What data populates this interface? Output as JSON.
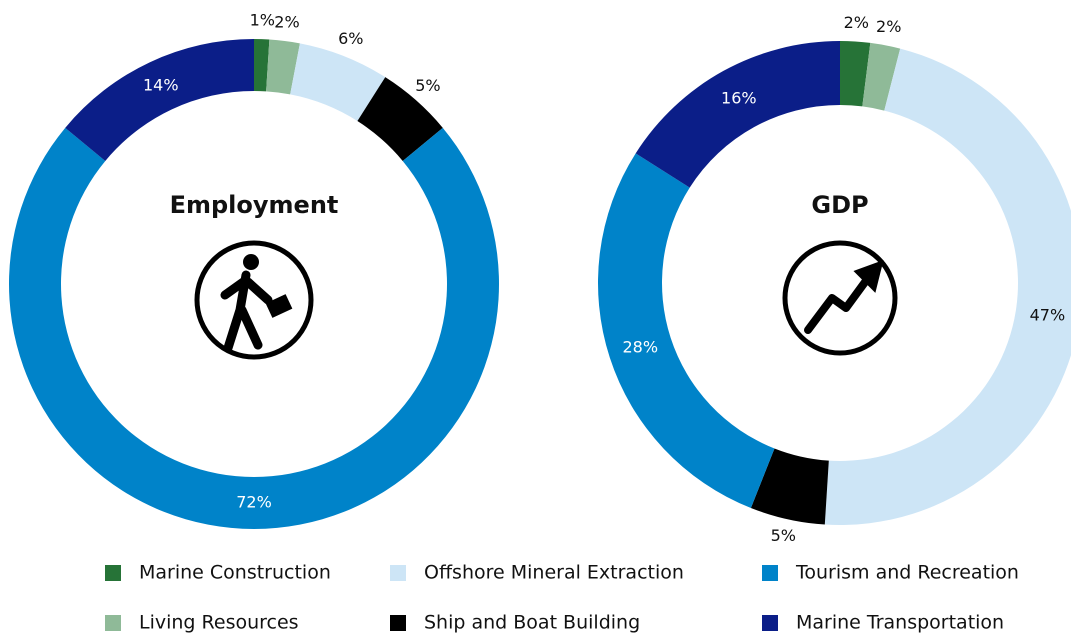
{
  "chart_data": {
    "type": "pie",
    "categories": [
      "Marine Construction",
      "Living Resources",
      "Offshore Mineral Extraction",
      "Ship and Boat Building",
      "Tourism and Recreation",
      "Marine Transportation"
    ],
    "colors": [
      "#267337",
      "#8fba98",
      "#cde5f6",
      "#000000",
      "#0083c9",
      "#0b1e88"
    ],
    "charts": [
      {
        "title": "Employment",
        "values": [
          1,
          2,
          6,
          5,
          72,
          14
        ],
        "value_labels": [
          "1%",
          "2%",
          "6%",
          "5%",
          "72%",
          "14%"
        ]
      },
      {
        "title": "GDP",
        "values": [
          2,
          2,
          47,
          5,
          28,
          16
        ],
        "value_labels": [
          "2%",
          "2%",
          "47%",
          "5%",
          "28%",
          "16%"
        ]
      }
    ]
  }
}
